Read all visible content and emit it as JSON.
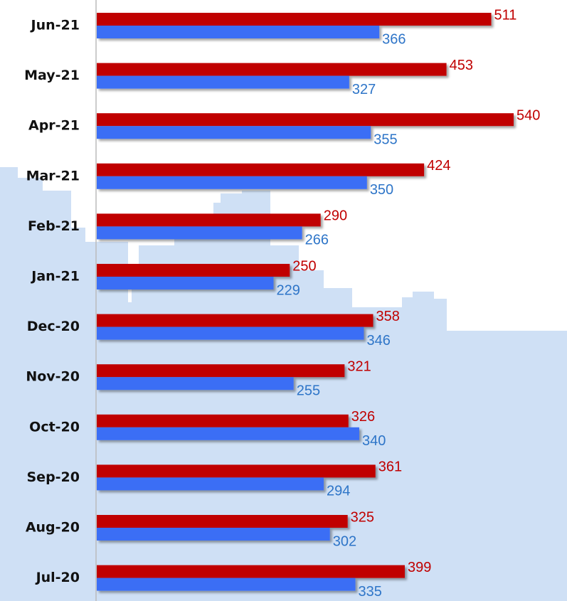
{
  "chart_data": {
    "type": "bar",
    "orientation": "horizontal",
    "categories": [
      "Jun-21",
      "May-21",
      "Apr-21",
      "Mar-21",
      "Feb-21",
      "Jan-21",
      "Dec-20",
      "Nov-20",
      "Oct-20",
      "Sep-20",
      "Aug-20",
      "Jul-20"
    ],
    "series": [
      {
        "color": "#c00000",
        "label_color": "#c00000",
        "values": [
          511,
          453,
          540,
          424,
          290,
          250,
          358,
          321,
          326,
          361,
          325,
          399
        ]
      },
      {
        "color": "#3b6ef5",
        "label_color": "#2e75c8",
        "values": [
          366,
          327,
          355,
          350,
          266,
          229,
          346,
          255,
          340,
          294,
          302,
          335
        ]
      }
    ]
  }
}
